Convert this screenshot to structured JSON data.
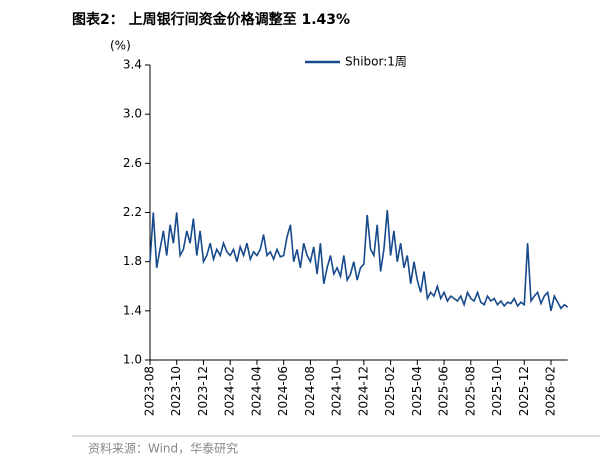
{
  "title": "图表2：  上周银行间资金价格调整至 1.43%",
  "source": "资料来源：Wind，华泰研究",
  "chart_data": {
    "type": "line",
    "y_unit": "(%)",
    "categories": [
      "2023-08",
      null,
      null,
      null,
      null,
      null,
      null,
      null,
      "2023-10",
      null,
      null,
      null,
      null,
      null,
      null,
      null,
      "2023-12",
      null,
      null,
      null,
      null,
      null,
      null,
      null,
      "2024-02",
      null,
      null,
      null,
      null,
      null,
      null,
      null,
      "2024-04",
      null,
      null,
      null,
      null,
      null,
      null,
      null,
      "2024-06",
      null,
      null,
      null,
      null,
      null,
      null,
      null,
      "2024-08",
      null,
      null,
      null,
      null,
      null,
      null,
      null,
      "2024-10",
      null,
      null,
      null,
      null,
      null,
      null,
      null,
      "2024-12",
      null,
      null,
      null,
      null,
      null,
      null,
      null,
      "2025-02",
      null,
      null,
      null,
      null,
      null,
      null,
      null,
      "2025-04",
      null,
      null,
      null,
      null,
      null,
      null,
      null,
      "2025-06",
      null,
      null,
      null,
      null,
      null,
      null,
      null,
      "2025-08",
      null,
      null,
      null,
      null,
      null,
      null,
      null,
      "2025-10",
      null,
      null,
      null,
      null,
      null,
      null,
      null,
      "2025-12",
      null,
      null,
      null,
      null,
      null,
      null,
      null,
      "2026-02",
      null,
      null,
      null,
      null,
      null
    ],
    "series": [
      {
        "name": "Shibor:1周",
        "color": "#174a8c",
        "values": [
          1.8,
          2.2,
          1.75,
          1.9,
          2.05,
          1.85,
          2.1,
          1.95,
          2.2,
          1.85,
          1.9,
          2.05,
          1.95,
          2.15,
          1.85,
          2.05,
          1.8,
          1.85,
          1.95,
          1.82,
          1.9,
          1.85,
          1.95,
          1.88,
          1.85,
          1.9,
          1.8,
          1.92,
          1.85,
          1.95,
          1.82,
          1.88,
          1.85,
          1.9,
          2.02,
          1.85,
          1.88,
          1.82,
          1.9,
          1.84,
          1.85,
          2.0,
          2.1,
          1.8,
          1.9,
          1.75,
          1.95,
          1.85,
          1.8,
          1.92,
          1.7,
          1.95,
          1.62,
          1.75,
          1.85,
          1.7,
          1.75,
          1.68,
          1.85,
          1.65,
          1.7,
          1.8,
          1.65,
          1.75,
          1.78,
          2.18,
          1.9,
          1.85,
          2.1,
          1.72,
          1.9,
          2.22,
          1.85,
          2.05,
          1.8,
          1.95,
          1.75,
          1.85,
          1.62,
          1.8,
          1.65,
          1.55,
          1.72,
          1.5,
          1.55,
          1.52,
          1.6,
          1.5,
          1.55,
          1.48,
          1.52,
          1.5,
          1.48,
          1.52,
          1.45,
          1.55,
          1.5,
          1.48,
          1.55,
          1.47,
          1.45,
          1.52,
          1.48,
          1.5,
          1.45,
          1.48,
          1.44,
          1.47,
          1.46,
          1.5,
          1.44,
          1.47,
          1.45,
          1.95,
          1.48,
          1.52,
          1.55,
          1.46,
          1.52,
          1.55,
          1.4,
          1.52,
          1.47,
          1.42,
          1.45,
          1.43
        ]
      }
    ],
    "ylim": [
      1.0,
      3.4
    ],
    "yticks": [
      {
        "value": 1.0,
        "label": "1.0"
      },
      1.4,
      1.8,
      2.2,
      2.6,
      {
        "value": 3.0,
        "label": "3.0"
      },
      3.4
    ],
    "legend": "top"
  }
}
